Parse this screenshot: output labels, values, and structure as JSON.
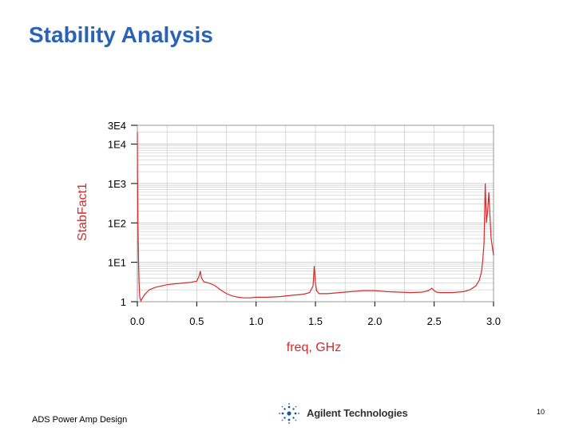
{
  "slide": {
    "title": "Stability Analysis",
    "footer": "ADS Power Amp Design",
    "page_number": "10",
    "logo_text": "Agilent Technologies"
  },
  "colors": {
    "title": "#2a62b8",
    "trace": "#d42a2a",
    "grid": "#c8c8c8",
    "axis_label": "#d42a2a"
  },
  "chart_data": {
    "type": "line",
    "title": "",
    "xlabel": "freq, GHz",
    "ylabel": "StabFact1",
    "xlim": [
      0.0,
      3.0
    ],
    "ylim": [
      1,
      30000
    ],
    "y_scale": "log",
    "x_ticks": [
      0.0,
      0.5,
      1.0,
      1.5,
      2.0,
      2.5,
      3.0
    ],
    "x_tick_labels": [
      "0.0",
      "0.5",
      "1.0",
      "1.5",
      "2.0",
      "2.5",
      "3.0"
    ],
    "y_ticks": [
      1,
      10,
      100,
      1000,
      10000,
      30000
    ],
    "y_tick_labels": [
      "1",
      "1E1",
      "1E2",
      "1E3",
      "1E4",
      "3E4"
    ],
    "grid": true,
    "series": [
      {
        "name": "",
        "x": [
          0.0,
          0.003,
          0.006,
          0.01,
          0.015,
          0.02,
          0.03,
          0.04,
          0.06,
          0.1,
          0.15,
          0.2,
          0.25,
          0.3,
          0.35,
          0.4,
          0.45,
          0.5,
          0.52,
          0.53,
          0.54,
          0.56,
          0.6,
          0.65,
          0.7,
          0.75,
          0.8,
          0.85,
          0.9,
          0.95,
          1.0,
          1.1,
          1.2,
          1.3,
          1.4,
          1.45,
          1.48,
          1.49,
          1.5,
          1.51,
          1.53,
          1.6,
          1.7,
          1.8,
          1.9,
          2.0,
          2.1,
          2.2,
          2.3,
          2.4,
          2.45,
          2.48,
          2.5,
          2.52,
          2.55,
          2.6,
          2.65,
          2.7,
          2.75,
          2.8,
          2.85,
          2.88,
          2.9,
          2.91,
          2.92,
          2.93,
          2.94,
          2.95,
          2.96,
          2.97,
          2.98,
          3.0
        ],
        "y": [
          20000,
          500,
          60,
          10,
          3,
          1.3,
          1.05,
          1.2,
          1.5,
          2.0,
          2.3,
          2.5,
          2.7,
          2.8,
          2.9,
          3.0,
          3.1,
          3.3,
          4.5,
          6.0,
          4.0,
          3.2,
          3.0,
          2.6,
          2.0,
          1.6,
          1.4,
          1.3,
          1.25,
          1.25,
          1.3,
          1.3,
          1.35,
          1.45,
          1.55,
          1.7,
          2.5,
          8.0,
          3.0,
          1.9,
          1.6,
          1.6,
          1.7,
          1.8,
          1.9,
          1.9,
          1.8,
          1.75,
          1.7,
          1.75,
          1.9,
          2.2,
          1.9,
          1.75,
          1.7,
          1.7,
          1.7,
          1.75,
          1.8,
          2.0,
          2.5,
          3.5,
          6.0,
          12.0,
          30.0,
          1000,
          100,
          200,
          600,
          150,
          40,
          15
        ]
      }
    ]
  }
}
